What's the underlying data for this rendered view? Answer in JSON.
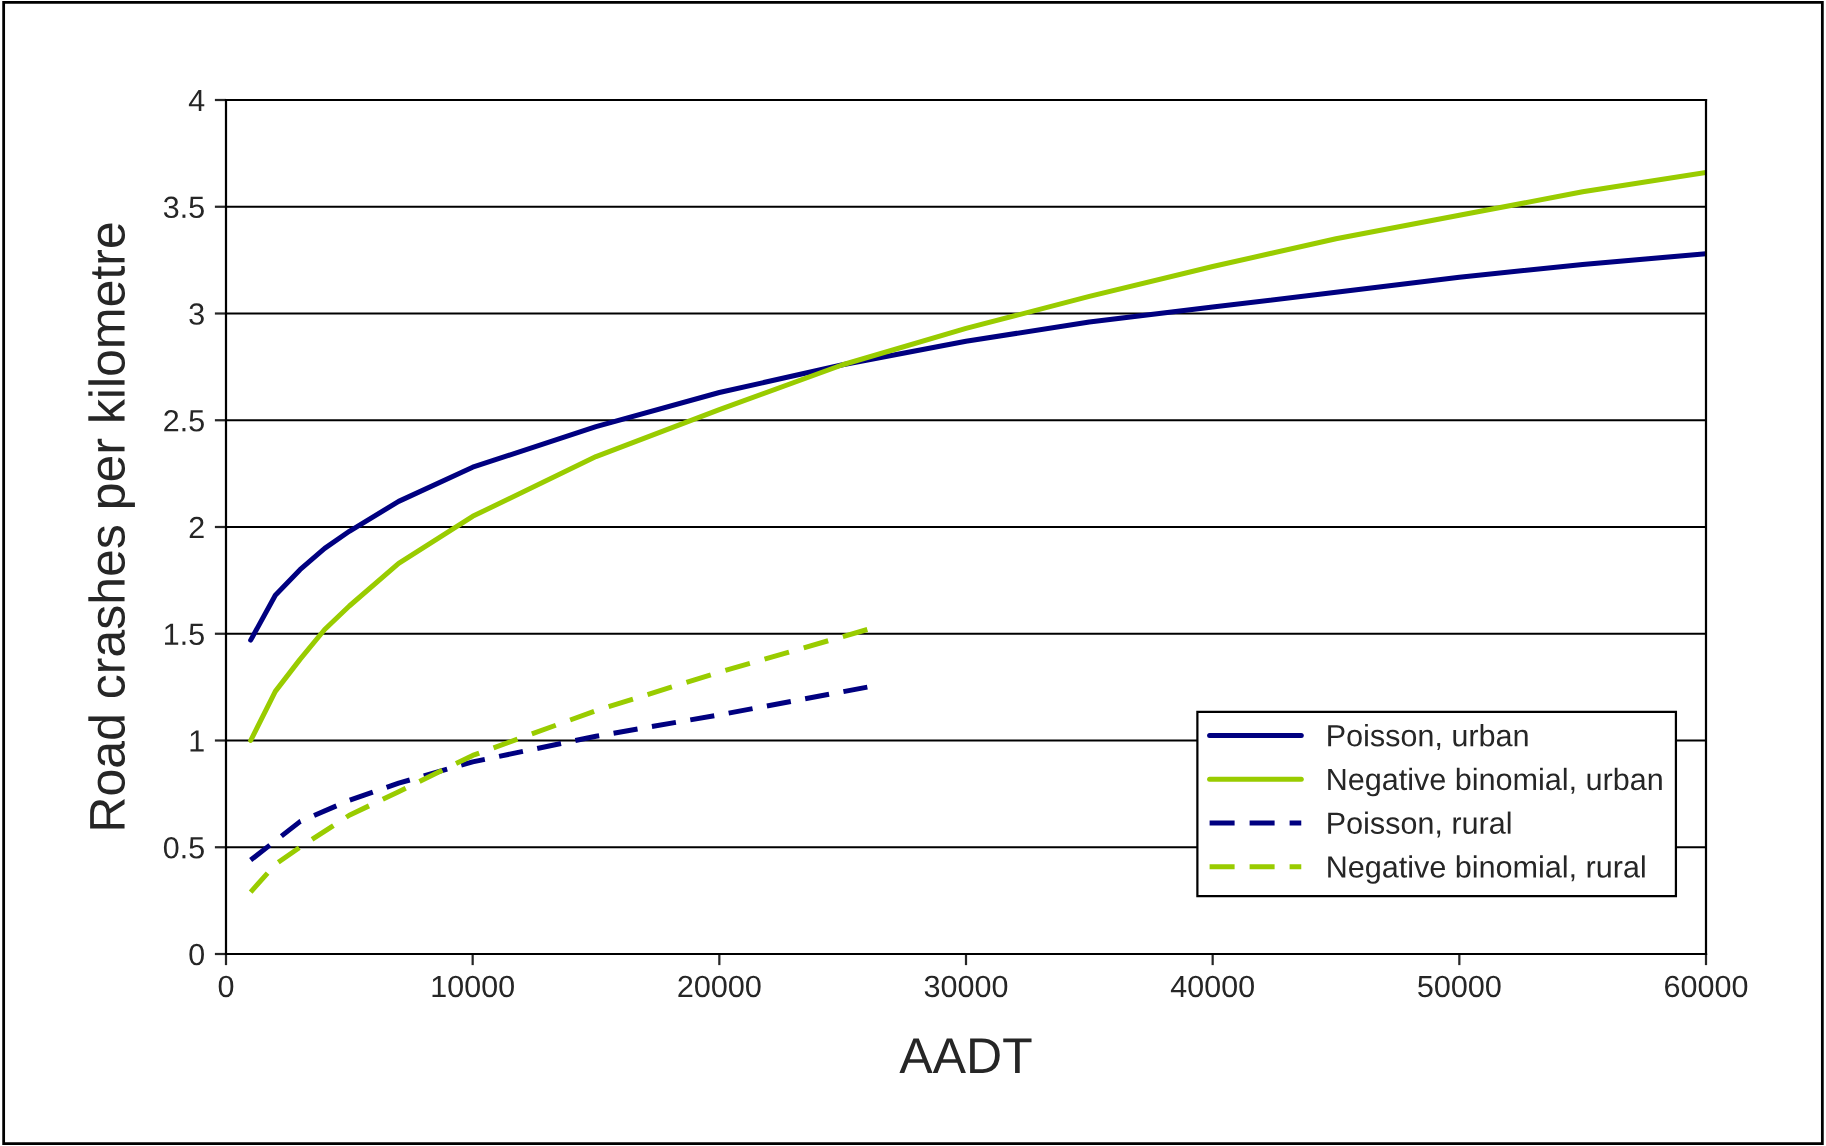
{
  "chart_data": {
    "type": "line",
    "xlabel": "AADT",
    "ylabel": "Road crashes per kilometre",
    "xlim": [
      0,
      60000
    ],
    "xticks": [
      0,
      10000,
      20000,
      30000,
      40000,
      50000,
      60000
    ],
    "ylim": [
      0,
      4
    ],
    "yticks": [
      0,
      0.5,
      1,
      1.5,
      2,
      2.5,
      3,
      3.5,
      4
    ],
    "grid": "y",
    "legend": "bottom right",
    "series": [
      {
        "name": "Poisson, urban",
        "color": "#000080",
        "line_style": "solid",
        "x": [
          1000,
          2000,
          3000,
          4000,
          5000,
          7000,
          10000,
          15000,
          20000,
          25000,
          30000,
          35000,
          40000,
          45000,
          50000,
          55000,
          60000
        ],
        "values": [
          1.47,
          1.68,
          1.8,
          1.9,
          1.98,
          2.12,
          2.28,
          2.47,
          2.63,
          2.76,
          2.87,
          2.96,
          3.03,
          3.1,
          3.17,
          3.23,
          3.28
        ]
      },
      {
        "name": "Negative binomial, urban",
        "color": "#99cc00",
        "line_style": "solid",
        "x": [
          1000,
          2000,
          3000,
          4000,
          5000,
          7000,
          10000,
          15000,
          20000,
          25000,
          30000,
          35000,
          40000,
          45000,
          50000,
          55000,
          60000
        ],
        "values": [
          1.0,
          1.23,
          1.38,
          1.52,
          1.63,
          1.83,
          2.05,
          2.33,
          2.55,
          2.76,
          2.93,
          3.08,
          3.22,
          3.35,
          3.46,
          3.57,
          3.66
        ]
      },
      {
        "name": "Poisson, rural",
        "color": "#000080",
        "line_style": "dashed",
        "x": [
          1000,
          2000,
          3000,
          5000,
          7000,
          10000,
          15000,
          20000,
          26000
        ],
        "values": [
          0.44,
          0.53,
          0.62,
          0.72,
          0.8,
          0.9,
          1.02,
          1.12,
          1.25
        ]
      },
      {
        "name": "Negative binomial, rural",
        "color": "#99cc00",
        "line_style": "dashed",
        "x": [
          1000,
          2000,
          3000,
          5000,
          7000,
          10000,
          15000,
          20000,
          26000
        ],
        "values": [
          0.29,
          0.42,
          0.5,
          0.65,
          0.76,
          0.93,
          1.14,
          1.32,
          1.52
        ]
      }
    ]
  }
}
